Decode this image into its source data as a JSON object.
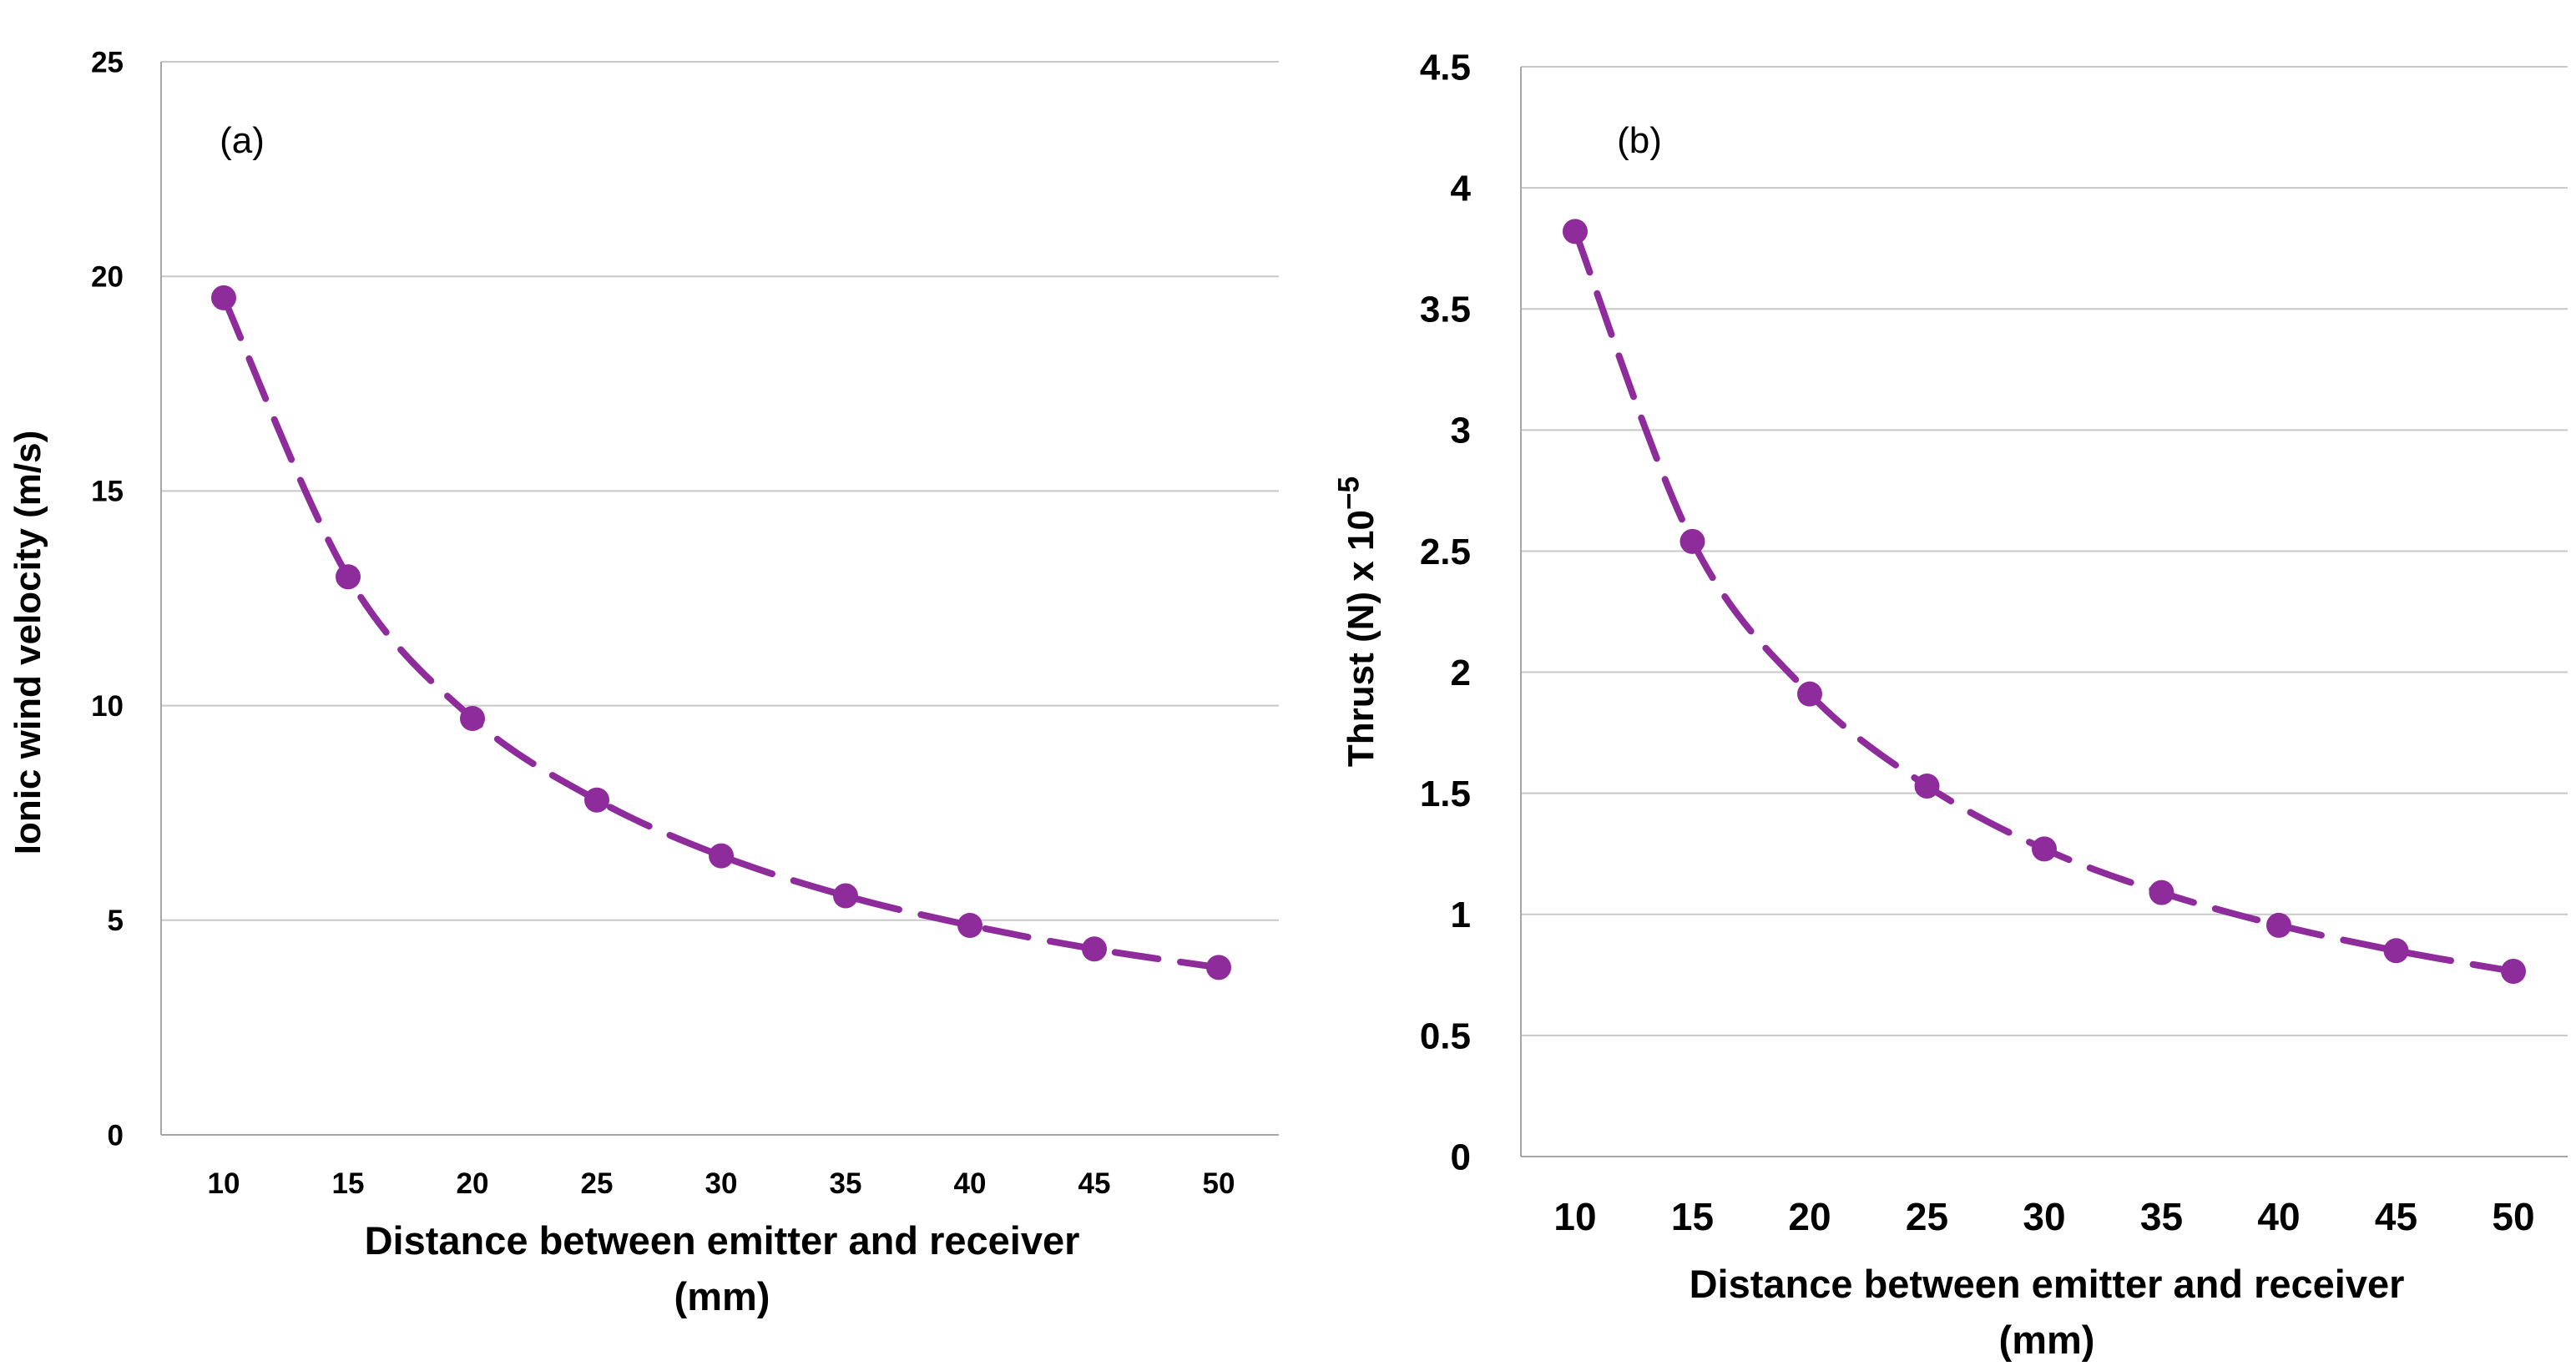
{
  "chart_data": [
    {
      "type": "line",
      "panel_label": "(a)",
      "categories": [
        10,
        15,
        20,
        25,
        30,
        35,
        40,
        45,
        50
      ],
      "series": [
        {
          "name": "Ionic wind velocity",
          "values": [
            19.5,
            13.0,
            9.7,
            7.8,
            6.5,
            5.57,
            4.88,
            4.33,
            3.9
          ],
          "color": "#8e2c9c",
          "line_style": "dashed",
          "marker": "circle"
        }
      ],
      "ylim": [
        0,
        25
      ],
      "yticks": [
        0,
        5,
        10,
        15,
        20,
        25
      ],
      "ytick_labels": [
        "0",
        "5",
        "10",
        "15",
        "20",
        "25"
      ],
      "xtick_labels": [
        "10",
        "15",
        "20",
        "25",
        "30",
        "35",
        "40",
        "45",
        "50"
      ],
      "ylabel": "Ionic wind velocity (m/s)",
      "xlabel_line1": "Distance between emitter and receiver",
      "xlabel_line2": "(mm)",
      "grid": true
    },
    {
      "type": "line",
      "panel_label": "(b)",
      "categories": [
        10,
        15,
        20,
        25,
        30,
        35,
        40,
        45,
        50
      ],
      "series": [
        {
          "name": "Thrust",
          "values": [
            3.82,
            2.54,
            1.91,
            1.53,
            1.27,
            1.09,
            0.955,
            0.85,
            0.765
          ],
          "color": "#8e2c9c",
          "line_style": "dashed",
          "marker": "circle"
        }
      ],
      "ylim": [
        0,
        4.5
      ],
      "yticks": [
        0,
        0.5,
        1,
        1.5,
        2,
        2.5,
        3,
        3.5,
        4,
        4.5
      ],
      "ytick_labels": [
        "0",
        "0.5",
        "1",
        "1.5",
        "2",
        "2.5",
        "3",
        "3.5",
        "4",
        "4.5"
      ],
      "xtick_labels": [
        "10",
        "15",
        "20",
        "25",
        "30",
        "35",
        "40",
        "45",
        "50"
      ],
      "ylabel_prefix": "Thrust (N) x 10",
      "ylabel_exponent": "−5",
      "xlabel_line1": "Distance between emitter and receiver",
      "xlabel_line2": "(mm)",
      "grid": true
    }
  ]
}
